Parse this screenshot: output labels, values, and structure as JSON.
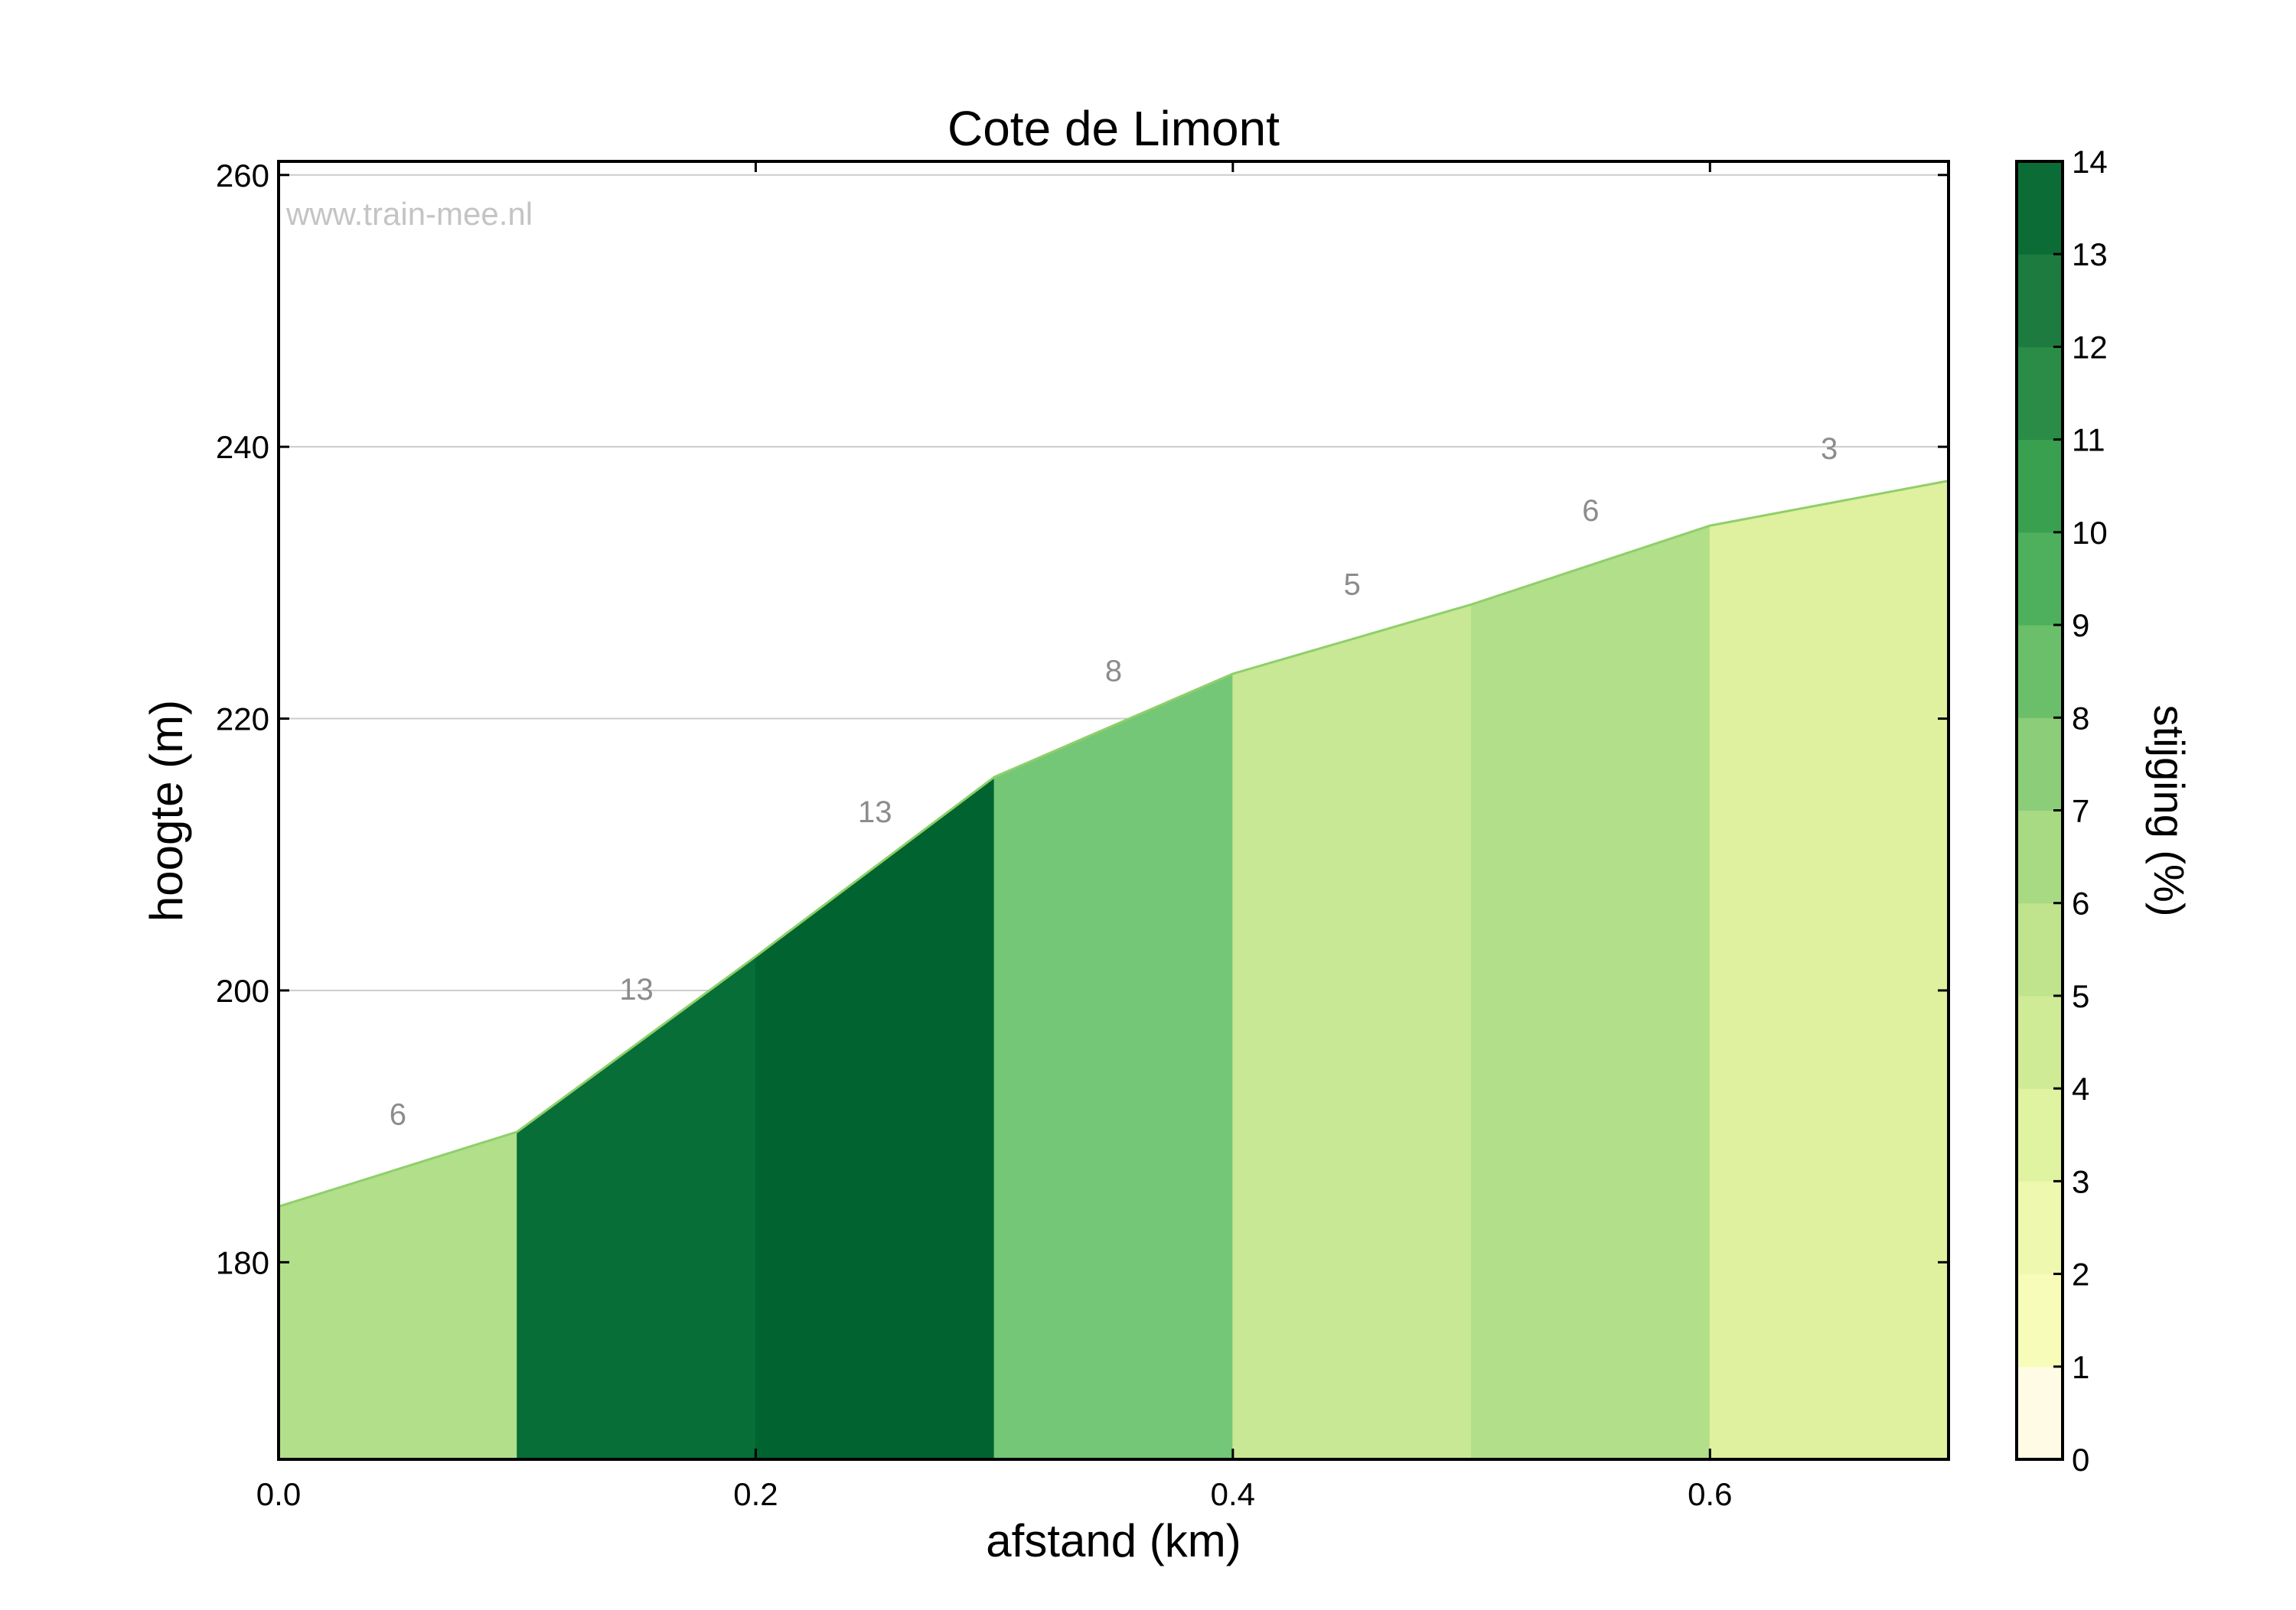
{
  "chart_data": {
    "type": "area",
    "title": "Cote de Limont",
    "xlabel": "afstand (km)",
    "ylabel": "hoogte (m)",
    "colorbar_label": "stijging (%)",
    "watermark": "www.train-mee.nl",
    "xlim": [
      0.0,
      0.7
    ],
    "ylim": [
      165.5,
      261.0
    ],
    "x_ticks": [
      0.0,
      0.2,
      0.4,
      0.6
    ],
    "x_tick_labels": [
      "0.0",
      "0.2",
      "0.4",
      "0.6"
    ],
    "y_ticks": [
      180,
      200,
      220,
      240,
      260
    ],
    "y_tick_labels": [
      "180",
      "200",
      "220",
      "240",
      "260"
    ],
    "grid": true,
    "segments": [
      {
        "x0": 0.0,
        "x1": 0.1,
        "y0": 184.1,
        "y1": 189.6,
        "gradient": 6,
        "label": "6"
      },
      {
        "x0": 0.1,
        "x1": 0.2,
        "y0": 189.6,
        "y1": 202.5,
        "gradient": 13,
        "label": "13"
      },
      {
        "x0": 0.2,
        "x1": 0.3,
        "y0": 202.5,
        "y1": 215.7,
        "gradient": 13,
        "label": "13"
      },
      {
        "x0": 0.3,
        "x1": 0.4,
        "y0": 215.7,
        "y1": 223.3,
        "gradient": 8,
        "label": "8"
      },
      {
        "x0": 0.4,
        "x1": 0.5,
        "y0": 223.3,
        "y1": 228.4,
        "gradient": 5,
        "label": "5"
      },
      {
        "x0": 0.5,
        "x1": 0.6,
        "y0": 228.4,
        "y1": 234.2,
        "gradient": 6,
        "label": "6"
      },
      {
        "x0": 0.6,
        "x1": 0.7,
        "y0": 234.2,
        "y1": 237.5,
        "gradient": 3,
        "label": "3"
      }
    ],
    "segment_fill_colors": [
      "#b2df8a",
      "#066e36",
      "#006330",
      "#74c776",
      "#c8e896",
      "#b2df8a",
      "#dff09e"
    ],
    "colorbar": {
      "min": 0,
      "max": 14,
      "tick_labels": [
        "0",
        "1",
        "2",
        "3",
        "4",
        "5",
        "6",
        "7",
        "8",
        "9",
        "10",
        "11",
        "12",
        "13",
        "14"
      ],
      "band_colors": [
        "#fffbe5",
        "#f7fcb9",
        "#eef8ae",
        "#e0f3a0",
        "#cfeb95",
        "#bfe48d",
        "#a8d983",
        "#8ccd79",
        "#6bbf6a",
        "#4eb05c",
        "#39a04f",
        "#2a8c46",
        "#1d7b3f",
        "#0c6c36"
      ]
    }
  }
}
